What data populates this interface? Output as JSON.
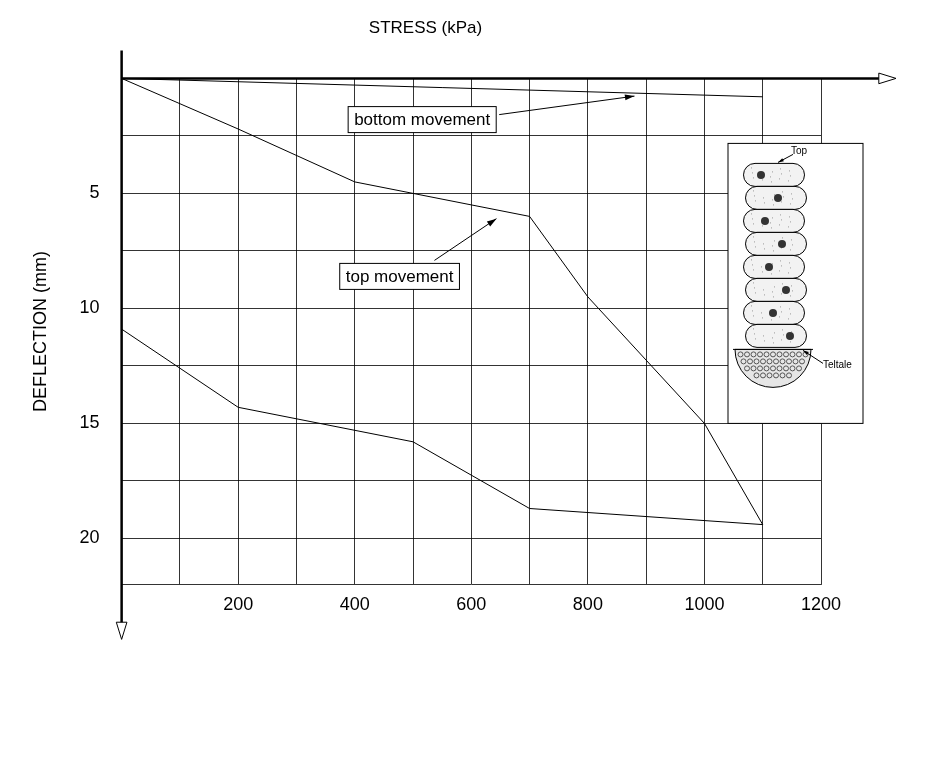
{
  "chart_data": {
    "type": "line",
    "x_label": "STRESS (kPa)",
    "y_label": "DEFLECTION (mm)",
    "series": [
      {
        "name": "bottom movement",
        "color": "#000000",
        "x": [
          0,
          1100
        ],
        "values": [
          0,
          0.8
        ]
      },
      {
        "name": "top movement",
        "color": "#000000",
        "x": [
          0,
          200,
          400,
          500,
          600,
          700,
          800,
          1000,
          1100,
          700,
          500,
          200,
          0
        ],
        "values": [
          0,
          2.2,
          4.5,
          5,
          5.5,
          6,
          9.5,
          15,
          19.4,
          18.7,
          15.8,
          14.3,
          10.9
        ]
      }
    ],
    "xlim": [
      0,
      1200
    ],
    "xticks": [
      200,
      400,
      600,
      800,
      1000,
      1200
    ],
    "ylim": [
      22,
      0
    ],
    "yticks": [
      5,
      10,
      15,
      20
    ],
    "grid": true,
    "inset": {
      "labels": [
        "Top",
        "Teltale"
      ]
    }
  }
}
